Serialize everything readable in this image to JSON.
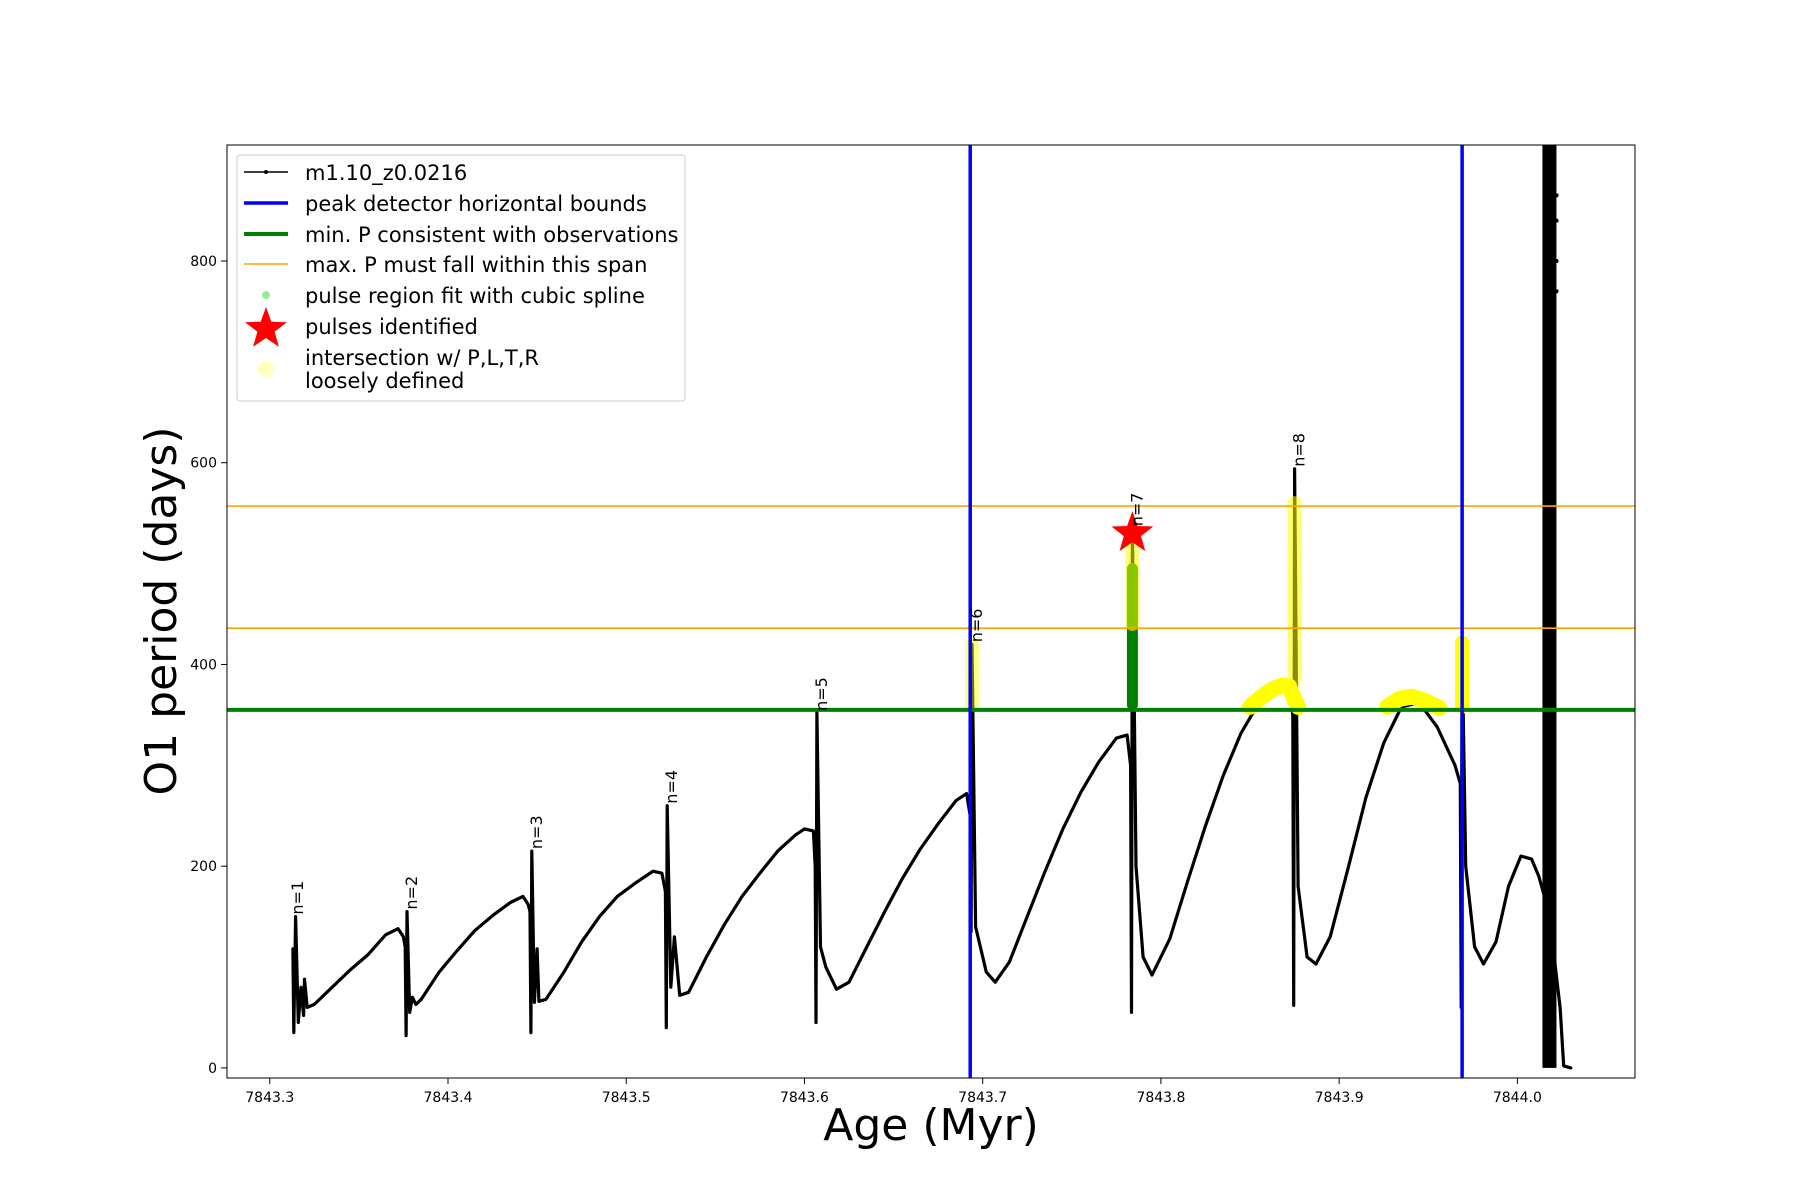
{
  "chart_data": {
    "type": "line",
    "xlabel": "Age (Myr)",
    "ylabel": "O1 period (days)",
    "xlim": [
      7843.276,
      7844.066
    ],
    "ylim": [
      -10,
      915
    ],
    "xticks": [
      7843.3,
      7843.4,
      7843.5,
      7843.6,
      7843.7,
      7843.8,
      7843.9,
      7844.0
    ],
    "xtick_labels": [
      "7843.3",
      "7843.4",
      "7843.5",
      "7843.6",
      "7843.7",
      "7843.8",
      "7843.9",
      "7844.0"
    ],
    "yticks": [
      0,
      200,
      400,
      600,
      800
    ],
    "ytick_labels": [
      "0",
      "200",
      "400",
      "600",
      "800"
    ],
    "grid": false,
    "legend_position": "top-left",
    "colors": {
      "series": "#000000",
      "bounds": "#0000ff",
      "min_p": "#008000",
      "max_p": "#ffa500",
      "spline": "#90ee90",
      "pulse": "#ff0000",
      "loose": "#ffff00",
      "fit": "#008000"
    },
    "legend": [
      {
        "key": "series",
        "label": "m1.10_z0.0216"
      },
      {
        "key": "bounds",
        "label": "peak detector horizontal bounds"
      },
      {
        "key": "min_p",
        "label": "min. P consistent with observations"
      },
      {
        "key": "max_p",
        "label": "max. P must fall within this span"
      },
      {
        "key": "spline",
        "label": "pulse region fit with cubic spline"
      },
      {
        "key": "pulse",
        "label": "pulses identified"
      },
      {
        "key": "loose",
        "label": "intersection w/ P,L,T,R",
        "label2": "loosely defined"
      }
    ],
    "vertical_bounds": [
      7843.693,
      7843.969
    ],
    "min_p_line": 355,
    "max_p_lines": [
      436,
      557
    ],
    "pulses": [
      {
        "label": "n=1",
        "x": 7843.313,
        "y": 150
      },
      {
        "label": "n=2",
        "x": 7843.377,
        "y": 155
      },
      {
        "label": "n=3",
        "x": 7843.447,
        "y": 215
      },
      {
        "label": "n=4",
        "x": 7843.523,
        "y": 260
      },
      {
        "label": "n=5",
        "x": 7843.607,
        "y": 352
      },
      {
        "label": "n=6",
        "x": 7843.694,
        "y": 420
      },
      {
        "label": "n=7",
        "x": 7843.784,
        "y": 535
      },
      {
        "label": "n=8",
        "x": 7843.875,
        "y": 594
      }
    ],
    "identified_pulse": {
      "x": 7843.784,
      "y": 530
    },
    "series": [
      {
        "segments": [
          [
            [
              7843.313,
              118
            ],
            [
              7843.3135,
              35
            ],
            [
              7843.3145,
              150
            ],
            [
              7843.316,
              45
            ],
            [
              7843.3175,
              80
            ],
            [
              7843.319,
              52
            ],
            [
              7843.3195,
              88
            ],
            [
              7843.321,
              60
            ],
            [
              7843.325,
              63
            ],
            [
              7843.335,
              80
            ],
            [
              7843.345,
              97
            ],
            [
              7843.355,
              112
            ],
            [
              7843.365,
              132
            ],
            [
              7843.372,
              138
            ],
            [
              7843.375,
              130
            ],
            [
              7843.376,
              120
            ]
          ],
          [
            [
              7843.376,
              120
            ],
            [
              7843.3765,
              32
            ],
            [
              7843.377,
              155
            ],
            [
              7843.3785,
              55
            ],
            [
              7843.38,
              70
            ],
            [
              7843.382,
              63
            ],
            [
              7843.385,
              68
            ],
            [
              7843.395,
              95
            ],
            [
              7843.405,
              116
            ],
            [
              7843.415,
              136
            ],
            [
              7843.425,
              151
            ],
            [
              7843.435,
              164
            ],
            [
              7843.442,
              170
            ],
            [
              7843.445,
              162
            ],
            [
              7843.446,
              155
            ]
          ],
          [
            [
              7843.446,
              155
            ],
            [
              7843.4465,
              35
            ],
            [
              7843.447,
              215
            ],
            [
              7843.4485,
              65
            ],
            [
              7843.45,
              118
            ],
            [
              7843.451,
              66
            ],
            [
              7843.455,
              68
            ],
            [
              7843.465,
              95
            ],
            [
              7843.475,
              125
            ],
            [
              7843.485,
              150
            ],
            [
              7843.495,
              170
            ],
            [
              7843.505,
              183
            ],
            [
              7843.515,
              195
            ],
            [
              7843.52,
              193
            ],
            [
              7843.522,
              175
            ]
          ],
          [
            [
              7843.522,
              175
            ],
            [
              7843.5225,
              40
            ],
            [
              7843.523,
              260
            ],
            [
              7843.525,
              80
            ],
            [
              7843.527,
              130
            ],
            [
              7843.53,
              72
            ],
            [
              7843.535,
              75
            ],
            [
              7843.545,
              110
            ],
            [
              7843.555,
              142
            ],
            [
              7843.565,
              170
            ],
            [
              7843.575,
              193
            ],
            [
              7843.585,
              215
            ],
            [
              7843.595,
              231
            ],
            [
              7843.6,
              237
            ],
            [
              7843.605,
              235
            ],
            [
              7843.606,
              200
            ]
          ],
          [
            [
              7843.606,
              200
            ],
            [
              7843.6065,
              45
            ],
            [
              7843.607,
              352
            ],
            [
              7843.609,
              120
            ],
            [
              7843.612,
              100
            ],
            [
              7843.618,
              78
            ],
            [
              7843.625,
              85
            ],
            [
              7843.635,
              120
            ],
            [
              7843.645,
              155
            ],
            [
              7843.655,
              188
            ],
            [
              7843.665,
              217
            ],
            [
              7843.675,
              242
            ],
            [
              7843.685,
              265
            ],
            [
              7843.691,
              272
            ],
            [
              7843.693,
              250
            ]
          ],
          [
            [
              7843.693,
              250
            ],
            [
              7843.6935,
              135
            ],
            [
              7843.694,
              420
            ],
            [
              7843.696,
              140
            ],
            [
              7843.702,
              95
            ],
            [
              7843.707,
              85
            ],
            [
              7843.715,
              105
            ],
            [
              7843.725,
              150
            ],
            [
              7843.735,
              195
            ],
            [
              7843.745,
              237
            ],
            [
              7843.755,
              273
            ],
            [
              7843.765,
              303
            ],
            [
              7843.775,
              327
            ],
            [
              7843.781,
              330
            ],
            [
              7843.783,
              300
            ]
          ],
          [
            [
              7843.783,
              300
            ],
            [
              7843.7835,
              55
            ],
            [
              7843.784,
              535
            ],
            [
              7843.786,
              200
            ],
            [
              7843.79,
              110
            ],
            [
              7843.795,
              92
            ],
            [
              7843.805,
              128
            ],
            [
              7843.815,
              185
            ],
            [
              7843.825,
              240
            ],
            [
              7843.835,
              290
            ],
            [
              7843.845,
              332
            ],
            [
              7843.855,
              362
            ],
            [
              7843.865,
              378
            ],
            [
              7843.872,
              381
            ],
            [
              7843.874,
              350
            ]
          ],
          [
            [
              7843.874,
              350
            ],
            [
              7843.8745,
              62
            ],
            [
              7843.875,
              594
            ],
            [
              7843.877,
              180
            ],
            [
              7843.882,
              110
            ],
            [
              7843.887,
              103
            ],
            [
              7843.895,
              130
            ],
            [
              7843.905,
              198
            ],
            [
              7843.915,
              268
            ],
            [
              7843.925,
              322
            ],
            [
              7843.935,
              358
            ],
            [
              7843.945,
              362
            ],
            [
              7843.955,
              338
            ],
            [
              7843.965,
              300
            ],
            [
              7843.968,
              282
            ]
          ],
          [
            [
              7843.968,
              282
            ],
            [
              7843.9685,
              60
            ],
            [
              7843.969,
              420
            ],
            [
              7843.971,
              200
            ],
            [
              7843.976,
              120
            ],
            [
              7843.981,
              103
            ],
            [
              7843.988,
              125
            ],
            [
              7843.995,
              180
            ],
            [
              7844.002,
              210
            ],
            [
              7844.008,
              207
            ],
            [
              7844.012,
              190
            ],
            [
              7844.016,
              165
            ],
            [
              7844.02,
              120
            ],
            [
              7844.024,
              60
            ],
            [
              7844.026,
              2
            ],
            [
              7844.03,
              0
            ]
          ]
        ]
      }
    ],
    "thick_vertical": {
      "x": 7844.018,
      "y0": 0,
      "y1": 915
    },
    "scatter_dots": [
      [
        7844.022,
        800
      ],
      [
        7844.022,
        865
      ],
      [
        7844.022,
        840
      ],
      [
        7844.022,
        770
      ]
    ],
    "green_fit": {
      "x": 7843.784,
      "y0": 360,
      "y1": 495
    },
    "loose_bars": [
      {
        "x": 7843.694,
        "y0": 360,
        "y1": 420,
        "alpha": 0.45
      },
      {
        "x": 7843.784,
        "y0": 440,
        "y1": 525,
        "alpha": 0.55
      },
      {
        "x": 7843.875,
        "y0": 385,
        "y1": 560,
        "alpha": 0.55
      },
      {
        "x": 7843.969,
        "y0": 358,
        "y1": 422,
        "alpha": 1.0
      }
    ],
    "loose_arcs": [
      [
        [
          7843.85,
          358
        ],
        [
          7843.856,
          367
        ],
        [
          7843.862,
          375
        ],
        [
          7843.868,
          379
        ],
        [
          7843.872,
          378
        ],
        [
          7843.875,
          365
        ],
        [
          7843.877,
          358
        ]
      ],
      [
        [
          7843.927,
          358
        ],
        [
          7843.934,
          366
        ],
        [
          7843.941,
          368
        ],
        [
          7843.948,
          364
        ],
        [
          7843.956,
          357
        ]
      ]
    ]
  }
}
